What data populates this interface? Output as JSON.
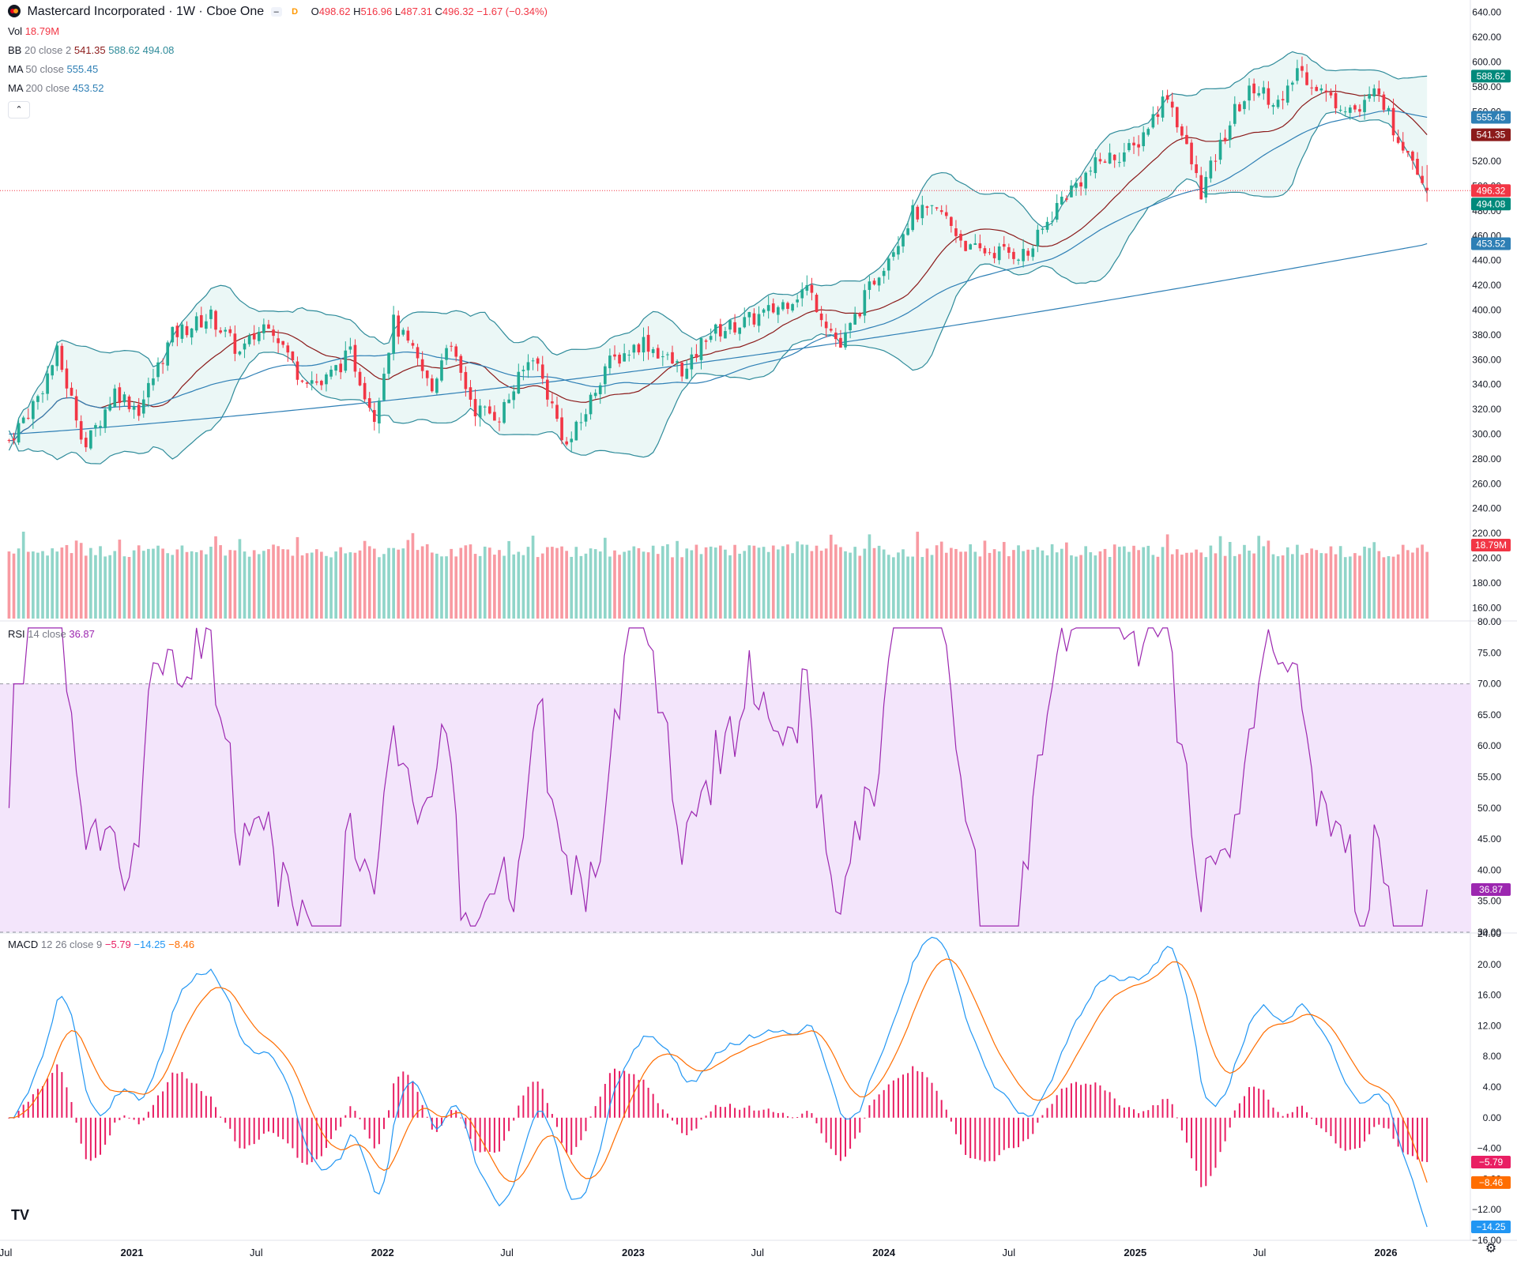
{
  "header": {
    "title": "Mastercard Incorporated · 1W · Cboe One",
    "chip_icon": "minus-icon",
    "chip_delayed": "D",
    "open_label": "O",
    "open": "498.62",
    "high_label": "H",
    "high": "516.96",
    "low_label": "L",
    "low": "487.31",
    "close_label": "C",
    "close": "496.32",
    "change": "−1.67 (−0.34%)"
  },
  "indicators": {
    "vol": {
      "name": "Vol",
      "value": "18.79M"
    },
    "bb": {
      "name": "BB",
      "params": "20 close 2",
      "basis": "541.35",
      "upper": "588.62",
      "lower": "494.08"
    },
    "ma50": {
      "name": "MA",
      "params": "50 close",
      "value": "555.45"
    },
    "ma200": {
      "name": "MA",
      "params": "200 close",
      "value": "453.52"
    },
    "rsi": {
      "name": "RSI",
      "params": "14 close",
      "value": "36.87"
    },
    "macd": {
      "name": "MACD",
      "params": "12 26 close 9",
      "hist": "−5.79",
      "macd": "−14.25",
      "signal": "−8.46"
    }
  },
  "colors": {
    "up": "#22ab94",
    "down": "#f23645",
    "bb": "#2e8b9a",
    "bbFill": "#e6f5f4",
    "basis": "#8b1a1a",
    "ma": "#2e7fb5",
    "rsi": "#9c27b0",
    "rsiBand": "#f3e5fb",
    "macd": "#2196f3",
    "signal": "#ff6d00",
    "hist": "#e91e63"
  },
  "chart_data": {
    "type": "candlestick",
    "interval": "1W",
    "x_ticks": [
      "Jul",
      "2021",
      "Jul",
      "2022",
      "Jul",
      "2023",
      "Jul",
      "2024",
      "Jul",
      "2025",
      "Jul",
      "2026"
    ],
    "price_axis": {
      "ylim": [
        150,
        650
      ],
      "ticks": [
        160,
        180,
        200,
        220,
        240,
        260,
        280,
        300,
        320,
        340,
        360,
        380,
        400,
        420,
        440,
        460,
        480,
        500,
        520,
        540,
        560,
        580,
        600,
        620,
        640
      ]
    },
    "price_tick_labels": [
      "160.00",
      "180.00",
      "200.00",
      "220.00",
      "240.00",
      "260.00",
      "280.00",
      "300.00",
      "320.00",
      "340.00",
      "360.00",
      "380.00",
      "400.00",
      "420.00",
      "440.00",
      "460.00",
      "480.00",
      "500.00",
      "520.00",
      "540.00",
      "560.00",
      "580.00",
      "600.00",
      "620.00",
      "640.00"
    ],
    "price_keypoints": [
      [
        "2020-07-06",
        295
      ],
      [
        "2020-08-17",
        330
      ],
      [
        "2020-09-14",
        365
      ],
      [
        "2020-10-26",
        290
      ],
      [
        "2020-12-07",
        335
      ],
      [
        "2021-01-11",
        320
      ],
      [
        "2021-03-01",
        380
      ],
      [
        "2021-04-26",
        395
      ],
      [
        "2021-06-07",
        365
      ],
      [
        "2021-07-19",
        392
      ],
      [
        "2021-08-30",
        350
      ],
      [
        "2021-10-04",
        340
      ],
      [
        "2021-11-15",
        365
      ],
      [
        "2021-12-20",
        315
      ],
      [
        "2022-01-17",
        390
      ],
      [
        "2022-02-14",
        365
      ],
      [
        "2022-03-14",
        335
      ],
      [
        "2022-04-04",
        375
      ],
      [
        "2022-05-16",
        320
      ],
      [
        "2022-06-20",
        315
      ],
      [
        "2022-08-08",
        365
      ],
      [
        "2022-09-26",
        290
      ],
      [
        "2022-10-17",
        310
      ],
      [
        "2022-11-21",
        355
      ],
      [
        "2023-01-16",
        375
      ],
      [
        "2023-02-20",
        360
      ],
      [
        "2023-03-20",
        350
      ],
      [
        "2023-04-17",
        380
      ],
      [
        "2023-06-12",
        390
      ],
      [
        "2023-07-24",
        400
      ],
      [
        "2023-09-11",
        418
      ],
      [
        "2023-10-30",
        370
      ],
      [
        "2023-12-18",
        425
      ],
      [
        "2024-02-12",
        478
      ],
      [
        "2024-03-25",
        478
      ],
      [
        "2024-05-06",
        448
      ],
      [
        "2024-06-17",
        447
      ],
      [
        "2024-07-29",
        445
      ],
      [
        "2024-09-16",
        490
      ],
      [
        "2024-11-11",
        520
      ],
      [
        "2024-12-30",
        530
      ],
      [
        "2025-02-17",
        575
      ],
      [
        "2025-04-07",
        495
      ],
      [
        "2025-05-26",
        560
      ],
      [
        "2025-06-23",
        580
      ],
      [
        "2025-08-04",
        565
      ],
      [
        "2025-08-25",
        595
      ],
      [
        "2025-10-13",
        570
      ],
      [
        "2025-11-24",
        560
      ],
      [
        "2025-12-22",
        580
      ],
      [
        "2026-01-12",
        545
      ],
      [
        "2026-02-09",
        525
      ],
      [
        "2026-03-02",
        496
      ]
    ],
    "last_price": 496.32,
    "bb_last": {
      "upper": 588.62,
      "basis": 541.35,
      "lower": 494.08
    },
    "ma50_last": 555.45,
    "ma200_last": 453.52,
    "volume_last": "18.79M",
    "rsi_axis": {
      "ylim": [
        30,
        80
      ],
      "ticks": [
        30,
        35,
        40,
        45,
        50,
        55,
        60,
        65,
        70,
        75,
        80
      ],
      "bands": [
        30,
        70
      ]
    },
    "rsi_tick_labels": [
      "30.00",
      "35.00",
      "40.00",
      "45.00",
      "50.00",
      "55.00",
      "60.00",
      "65.00",
      "70.00",
      "75.00",
      "80.00"
    ],
    "rsi_last": 36.87,
    "macd_axis": {
      "ylim": [
        -16,
        24
      ],
      "ticks": [
        -16,
        -12,
        -8,
        -4,
        0,
        4,
        8,
        12,
        16,
        20,
        24
      ]
    },
    "macd_tick_labels": [
      "−16.00",
      "−12.00",
      "−8.00",
      "−4.00",
      "0.00",
      "4.00",
      "8.00",
      "12.00",
      "16.00",
      "20.00",
      "24.00"
    ],
    "macd_last": {
      "macd": -14.25,
      "signal": -8.46,
      "hist": -5.79
    }
  }
}
